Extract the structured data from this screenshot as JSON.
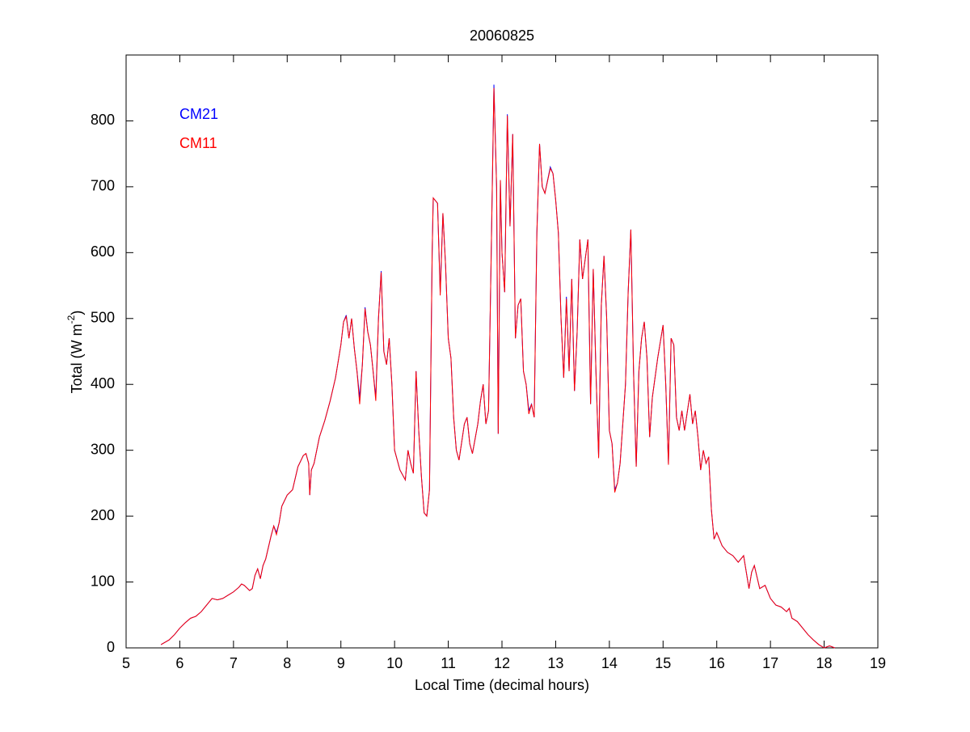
{
  "chart_data": {
    "type": "line",
    "title": "20060825",
    "xlabel": "Local Time (decimal hours)",
    "ylabel": {
      "text": "Total (W m",
      "sup": "-2",
      "end": ")"
    },
    "xlim": [
      5,
      19
    ],
    "ylim": [
      0,
      900
    ],
    "xticks": [
      5,
      6,
      7,
      8,
      9,
      10,
      11,
      12,
      13,
      14,
      15,
      16,
      17,
      18,
      19
    ],
    "yticks": [
      0,
      100,
      200,
      300,
      400,
      500,
      600,
      700,
      800
    ],
    "grid": false,
    "legend": "top-left",
    "x": [
      5.65,
      5.8,
      5.9,
      6.0,
      6.1,
      6.2,
      6.3,
      6.4,
      6.5,
      6.6,
      6.7,
      6.8,
      6.9,
      7.0,
      7.1,
      7.15,
      7.2,
      7.3,
      7.35,
      7.4,
      7.45,
      7.5,
      7.55,
      7.6,
      7.7,
      7.75,
      7.8,
      7.85,
      7.9,
      8.0,
      8.1,
      8.2,
      8.3,
      8.35,
      8.4,
      8.42,
      8.45,
      8.5,
      8.6,
      8.7,
      8.8,
      8.9,
      9.0,
      9.05,
      9.1,
      9.15,
      9.2,
      9.25,
      9.3,
      9.35,
      9.4,
      9.45,
      9.5,
      9.55,
      9.6,
      9.65,
      9.7,
      9.75,
      9.8,
      9.85,
      9.9,
      9.95,
      10.0,
      10.1,
      10.2,
      10.25,
      10.3,
      10.35,
      10.4,
      10.45,
      10.5,
      10.55,
      10.6,
      10.65,
      10.7,
      10.72,
      10.8,
      10.85,
      10.9,
      10.95,
      11.0,
      11.05,
      11.1,
      11.15,
      11.2,
      11.3,
      11.35,
      11.4,
      11.45,
      11.55,
      11.6,
      11.65,
      11.7,
      11.75,
      11.8,
      11.85,
      11.9,
      11.93,
      11.97,
      12.0,
      12.05,
      12.1,
      12.15,
      12.2,
      12.25,
      12.3,
      12.35,
      12.4,
      12.45,
      12.5,
      12.55,
      12.6,
      12.65,
      12.7,
      12.75,
      12.8,
      12.9,
      12.95,
      13.0,
      13.05,
      13.1,
      13.15,
      13.2,
      13.25,
      13.3,
      13.35,
      13.4,
      13.45,
      13.5,
      13.6,
      13.65,
      13.7,
      13.75,
      13.8,
      13.85,
      13.9,
      13.95,
      14.0,
      14.05,
      14.1,
      14.15,
      14.2,
      14.3,
      14.35,
      14.4,
      14.45,
      14.5,
      14.55,
      14.6,
      14.65,
      14.7,
      14.75,
      14.8,
      14.9,
      15.0,
      15.05,
      15.1,
      15.15,
      15.2,
      15.25,
      15.3,
      15.35,
      15.4,
      15.5,
      15.55,
      15.6,
      15.65,
      15.7,
      15.75,
      15.8,
      15.85,
      15.9,
      15.95,
      16.0,
      16.1,
      16.2,
      16.3,
      16.4,
      16.5,
      16.6,
      16.65,
      16.7,
      16.8,
      16.9,
      17.0,
      17.1,
      17.2,
      17.3,
      17.35,
      17.4,
      17.5,
      17.6,
      17.7,
      17.8,
      17.9,
      18.0,
      18.1,
      18.2
    ],
    "series": [
      {
        "name": "CM21",
        "color": "#0000ff",
        "values": [
          5,
          12,
          20,
          30,
          38,
          45,
          48,
          55,
          65,
          75,
          73,
          75,
          80,
          85,
          92,
          97,
          95,
          87,
          90,
          110,
          120,
          105,
          125,
          135,
          170,
          185,
          175,
          190,
          215,
          232,
          240,
          275,
          292,
          295,
          280,
          232,
          270,
          280,
          320,
          345,
          375,
          410,
          460,
          495,
          505,
          470,
          500,
          455,
          420,
          380,
          430,
          517,
          480,
          460,
          420,
          380,
          500,
          572,
          450,
          430,
          470,
          400,
          300,
          270,
          255,
          300,
          280,
          265,
          420,
          330,
          260,
          205,
          200,
          240,
          600,
          683,
          675,
          540,
          660,
          580,
          470,
          440,
          350,
          300,
          285,
          340,
          350,
          310,
          295,
          340,
          375,
          400,
          340,
          360,
          600,
          855,
          700,
          325,
          710,
          600,
          540,
          810,
          640,
          780,
          470,
          520,
          530,
          420,
          400,
          360,
          370,
          350,
          630,
          765,
          700,
          690,
          730,
          720,
          680,
          630,
          500,
          410,
          533,
          420,
          560,
          390,
          480,
          620,
          560,
          620,
          370,
          575,
          420,
          290,
          520,
          595,
          500,
          330,
          310,
          240,
          250,
          280,
          400,
          540,
          635,
          420,
          275,
          420,
          470,
          495,
          440,
          320,
          380,
          440,
          490,
          400,
          280,
          470,
          460,
          350,
          330,
          360,
          330,
          385,
          340,
          360,
          320,
          270,
          300,
          280,
          290,
          210,
          165,
          175,
          155,
          145,
          140,
          130,
          140,
          90,
          115,
          125,
          90,
          95,
          75,
          65,
          62,
          55,
          60,
          45,
          40,
          30,
          20,
          12,
          5,
          0,
          3,
          0
        ]
      },
      {
        "name": "CM11",
        "color": "#ff0000",
        "values": [
          5,
          12,
          20,
          30,
          38,
          45,
          48,
          55,
          65,
          75,
          73,
          75,
          80,
          85,
          92,
          97,
          95,
          87,
          90,
          110,
          120,
          105,
          125,
          135,
          170,
          185,
          172,
          190,
          215,
          232,
          240,
          275,
          292,
          295,
          280,
          232,
          270,
          280,
          320,
          345,
          375,
          410,
          460,
          495,
          503,
          470,
          500,
          455,
          420,
          370,
          430,
          515,
          480,
          460,
          420,
          375,
          500,
          570,
          450,
          430,
          470,
          400,
          300,
          270,
          255,
          300,
          280,
          265,
          420,
          330,
          260,
          205,
          200,
          240,
          600,
          683,
          675,
          535,
          660,
          580,
          470,
          440,
          350,
          300,
          285,
          340,
          350,
          310,
          295,
          340,
          375,
          400,
          340,
          360,
          600,
          850,
          700,
          325,
          710,
          600,
          540,
          808,
          640,
          780,
          470,
          520,
          530,
          420,
          400,
          355,
          370,
          350,
          630,
          765,
          700,
          690,
          728,
          720,
          680,
          630,
          500,
          410,
          530,
          420,
          560,
          390,
          480,
          620,
          560,
          620,
          370,
          575,
          420,
          288,
          520,
          595,
          500,
          330,
          310,
          236,
          250,
          280,
          400,
          540,
          635,
          420,
          275,
          420,
          470,
          495,
          440,
          320,
          380,
          440,
          490,
          400,
          278,
          470,
          460,
          350,
          330,
          360,
          330,
          385,
          340,
          360,
          320,
          270,
          300,
          280,
          290,
          210,
          165,
          175,
          155,
          145,
          140,
          130,
          140,
          90,
          115,
          125,
          90,
          95,
          75,
          65,
          62,
          55,
          60,
          45,
          40,
          30,
          20,
          12,
          5,
          0,
          3,
          0
        ]
      }
    ]
  }
}
